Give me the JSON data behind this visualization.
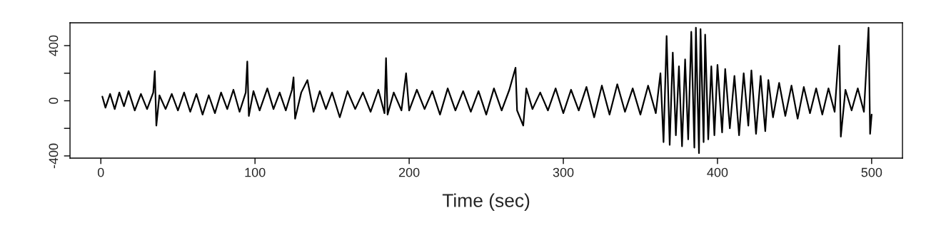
{
  "chart_data": {
    "type": "line",
    "xlabel": "Time (sec)",
    "xlim": [
      -20,
      520
    ],
    "xticks": [
      0,
      100,
      200,
      300,
      400,
      500
    ],
    "ylim": [
      -416,
      566
    ],
    "yticks": [
      {
        "value": -400,
        "label": "-400"
      },
      {
        "value": -200,
        "label": null
      },
      0,
      {
        "value": 200,
        "label": null
      },
      400
    ],
    "x": [
      1,
      3,
      6,
      9,
      12,
      15,
      18,
      22,
      26,
      30,
      34,
      35,
      36,
      38,
      42,
      46,
      50,
      54,
      58,
      62,
      66,
      70,
      74,
      78,
      82,
      86,
      90,
      94,
      95,
      96,
      99,
      103,
      108,
      112,
      116,
      120,
      124,
      125,
      126,
      130,
      134,
      138,
      142,
      146,
      150,
      155,
      160,
      165,
      170,
      175,
      180,
      184,
      185,
      186,
      190,
      195,
      198,
      200,
      205,
      210,
      215,
      220,
      225,
      230,
      235,
      240,
      245,
      250,
      255,
      260,
      265,
      269,
      270,
      274,
      276,
      280,
      285,
      290,
      295,
      300,
      305,
      310,
      315,
      320,
      325,
      330,
      335,
      340,
      345,
      350,
      355,
      360,
      363,
      365,
      367,
      369,
      371,
      373,
      375,
      377,
      379,
      381,
      383,
      385,
      386,
      388,
      389,
      391,
      392,
      394,
      396,
      398,
      400,
      403,
      405,
      408,
      411,
      414,
      417,
      420,
      422,
      425,
      428,
      431,
      433,
      436,
      440,
      444,
      448,
      452,
      456,
      460,
      464,
      468,
      472,
      476,
      479,
      480,
      483,
      487,
      491,
      495,
      498,
      499,
      500
    ],
    "series": [
      {
        "color": "#000000",
        "values": [
          30,
          -50,
          50,
          -60,
          60,
          -40,
          70,
          -70,
          50,
          -60,
          60,
          215,
          -180,
          40,
          -60,
          50,
          -70,
          60,
          -80,
          50,
          -100,
          40,
          -90,
          60,
          -60,
          80,
          -80,
          60,
          285,
          -110,
          70,
          -70,
          90,
          -60,
          60,
          -70,
          80,
          170,
          -130,
          60,
          150,
          -80,
          70,
          -60,
          60,
          -120,
          70,
          -60,
          60,
          -80,
          80,
          -90,
          310,
          -100,
          60,
          -70,
          200,
          -70,
          80,
          -60,
          70,
          -100,
          90,
          -70,
          70,
          -80,
          70,
          -100,
          90,
          -70,
          80,
          240,
          -70,
          -180,
          90,
          -60,
          60,
          -70,
          90,
          -90,
          80,
          -70,
          100,
          -120,
          110,
          -100,
          120,
          -80,
          90,
          -100,
          110,
          -90,
          200,
          -300,
          470,
          -320,
          350,
          -250,
          250,
          -330,
          300,
          -280,
          500,
          -340,
          530,
          -380,
          520,
          -300,
          480,
          -280,
          250,
          -250,
          260,
          -230,
          230,
          -200,
          180,
          -250,
          200,
          -180,
          220,
          -240,
          180,
          -220,
          150,
          -120,
          130,
          -110,
          110,
          -130,
          100,
          -90,
          90,
          -100,
          90,
          -80,
          400,
          -260,
          80,
          -70,
          90,
          -80,
          530,
          -240,
          -100
        ]
      }
    ]
  }
}
